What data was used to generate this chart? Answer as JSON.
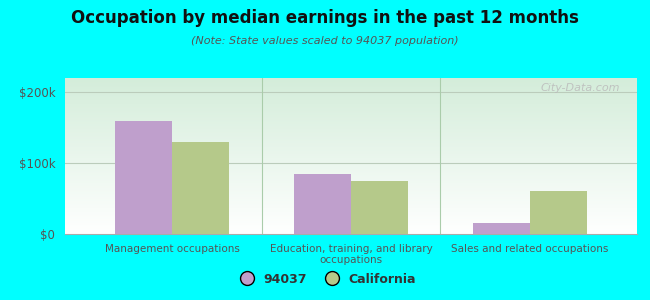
{
  "title": "Occupation by median earnings in the past 12 months",
  "subtitle": "(Note: State values scaled to 94037 population)",
  "categories": [
    "Management occupations",
    "Education, training, and library\noccupations",
    "Sales and related occupations"
  ],
  "values_94037": [
    160000,
    85000,
    15000
  ],
  "values_california": [
    130000,
    75000,
    60000
  ],
  "ylim": [
    0,
    220000
  ],
  "yticks": [
    0,
    100000,
    200000
  ],
  "ytick_labels": [
    "$0",
    "$100k",
    "$200k"
  ],
  "color_94037": "#bf9fcc",
  "color_california": "#b5c98a",
  "background_color": "#00ffff",
  "legend_label_94037": "94037",
  "legend_label_california": "California",
  "bar_width": 0.32,
  "watermark": "City-Data.com"
}
